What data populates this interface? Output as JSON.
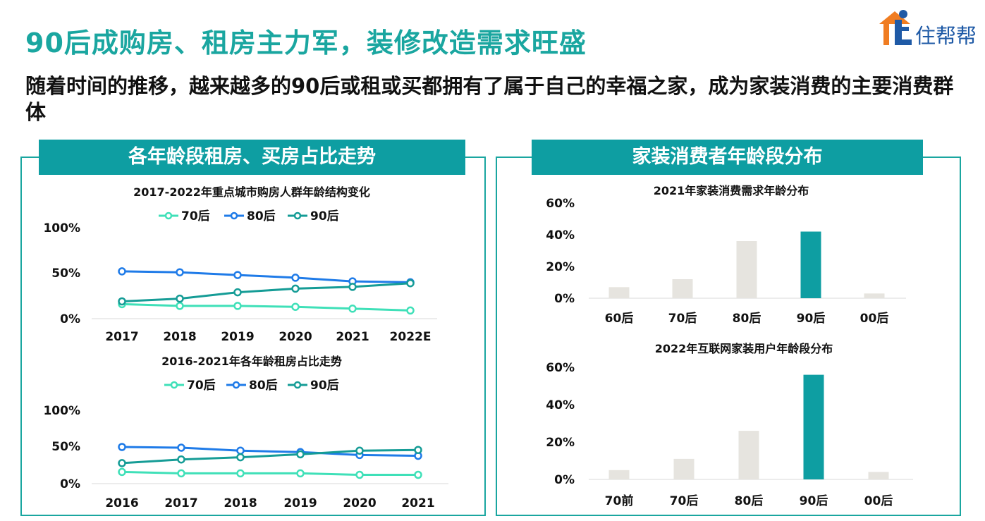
{
  "header": {
    "title": "90后成购房、租房主力军，装修改造需求旺盛",
    "subtitle": "随着时间的推移，越来越多的90后或租或买都拥有了属于自己的幸福之家，成为家装消费的主要消费群体"
  },
  "logo": {
    "text": "住帮帮"
  },
  "panels": {
    "left_title": "各年龄段租房、买房占比走势",
    "right_title": "家装消费者年龄段分布"
  },
  "colors": {
    "teal": "#0e9ea2",
    "s70": "#3fe0b8",
    "s80": "#1f7be8",
    "s90": "#159c96",
    "bar_gray": "#e6e4df"
  },
  "chart_data": [
    {
      "type": "line",
      "title": "2017-2022年重点城市购房人群年龄结构变化",
      "categories": [
        "2017",
        "2018",
        "2019",
        "2020",
        "2021",
        "2022E"
      ],
      "y_ticks": [
        "100%",
        "50%",
        "0%"
      ],
      "ylim": [
        0,
        100
      ],
      "legend": "top",
      "series": [
        {
          "name": "70后",
          "color": "#3fe0b8",
          "values": [
            16,
            14,
            14,
            13,
            11,
            9
          ]
        },
        {
          "name": "80后",
          "color": "#1f7be8",
          "values": [
            52,
            51,
            48,
            45,
            41,
            40
          ]
        },
        {
          "name": "90后",
          "color": "#159c96",
          "values": [
            19,
            22,
            29,
            33,
            35,
            39
          ]
        }
      ]
    },
    {
      "type": "line",
      "title": "2016-2021年各年龄租房占比走势",
      "categories": [
        "2016",
        "2017",
        "2018",
        "2019",
        "2020",
        "2021"
      ],
      "y_ticks": [
        "100%",
        "50%",
        "0%"
      ],
      "ylim": [
        0,
        100
      ],
      "legend": "top",
      "series": [
        {
          "name": "70后",
          "color": "#3fe0b8",
          "values": [
            16,
            14,
            14,
            14,
            12,
            12
          ]
        },
        {
          "name": "80后",
          "color": "#1f7be8",
          "values": [
            50,
            49,
            45,
            43,
            39,
            38
          ]
        },
        {
          "name": "90后",
          "color": "#159c96",
          "values": [
            28,
            33,
            36,
            40,
            45,
            46
          ]
        }
      ]
    },
    {
      "type": "bar",
      "title": "2021年家装消费需求年龄分布",
      "categories": [
        "60后",
        "70后",
        "80后",
        "90后",
        "00后"
      ],
      "values": [
        7,
        12,
        36,
        42,
        3
      ],
      "highlight_index": 3,
      "y_ticks": [
        "60%",
        "40%",
        "20%",
        "0%"
      ],
      "ylim": [
        0,
        60
      ]
    },
    {
      "type": "bar",
      "title": "2022年互联网家装用户年龄段分布",
      "categories": [
        "70前",
        "70后",
        "80后",
        "90后",
        "00后"
      ],
      "values": [
        5,
        11,
        26,
        56,
        4
      ],
      "highlight_index": 3,
      "y_ticks": [
        "60%",
        "40%",
        "20%",
        "0%"
      ],
      "ylim": [
        0,
        60
      ]
    }
  ]
}
